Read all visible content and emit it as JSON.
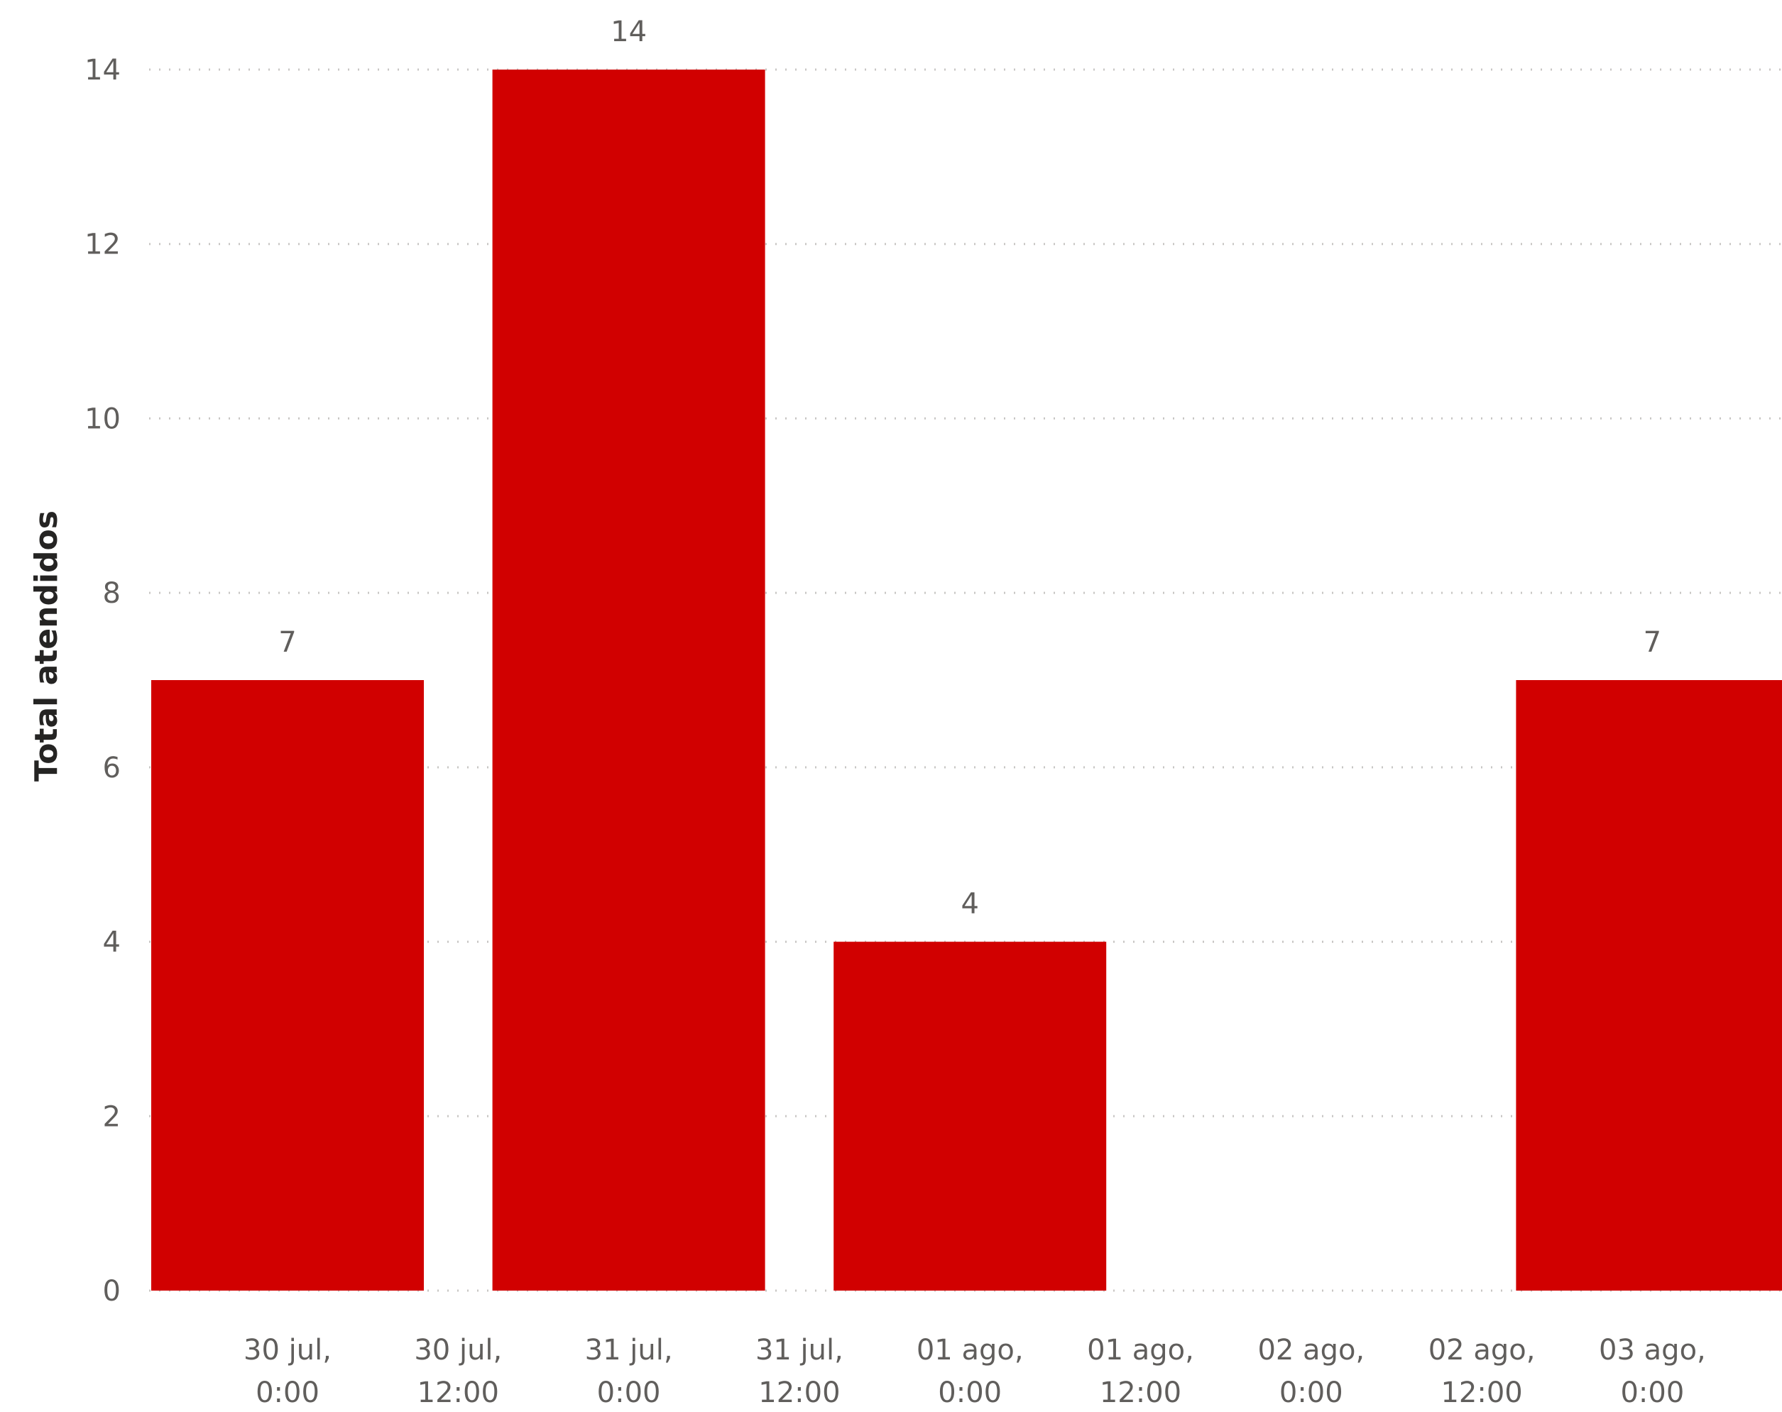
{
  "chart_data": {
    "type": "bar",
    "title": "",
    "xlabel": "",
    "ylabel": "Total atendidos",
    "ylim": [
      0,
      14
    ],
    "yticks": [
      0,
      2,
      4,
      6,
      8,
      10,
      12,
      14
    ],
    "grid": true,
    "x_ticks": [
      {
        "line1": "30 jul,",
        "line2": "0:00"
      },
      {
        "line1": "30 jul,",
        "line2": "12:00"
      },
      {
        "line1": "31 jul,",
        "line2": "0:00"
      },
      {
        "line1": "31 jul,",
        "line2": "12:00"
      },
      {
        "line1": "01 ago,",
        "line2": "0:00"
      },
      {
        "line1": "01 ago,",
        "line2": "12:00"
      },
      {
        "line1": "02 ago,",
        "line2": "0:00"
      },
      {
        "line1": "02 ago,",
        "line2": "12:00"
      },
      {
        "line1": "03 ago,",
        "line2": "0:00"
      }
    ],
    "bars": [
      {
        "x": "30 jul, 0:00",
        "value": 7
      },
      {
        "x": "31 jul, 0:00",
        "value": 14
      },
      {
        "x": "01 ago, 0:00",
        "value": 4
      },
      {
        "x": "02 ago, 0:00",
        "value": 0
      },
      {
        "x": "03 ago, 0:00",
        "value": 7
      }
    ],
    "bar_color": "#d10000"
  }
}
